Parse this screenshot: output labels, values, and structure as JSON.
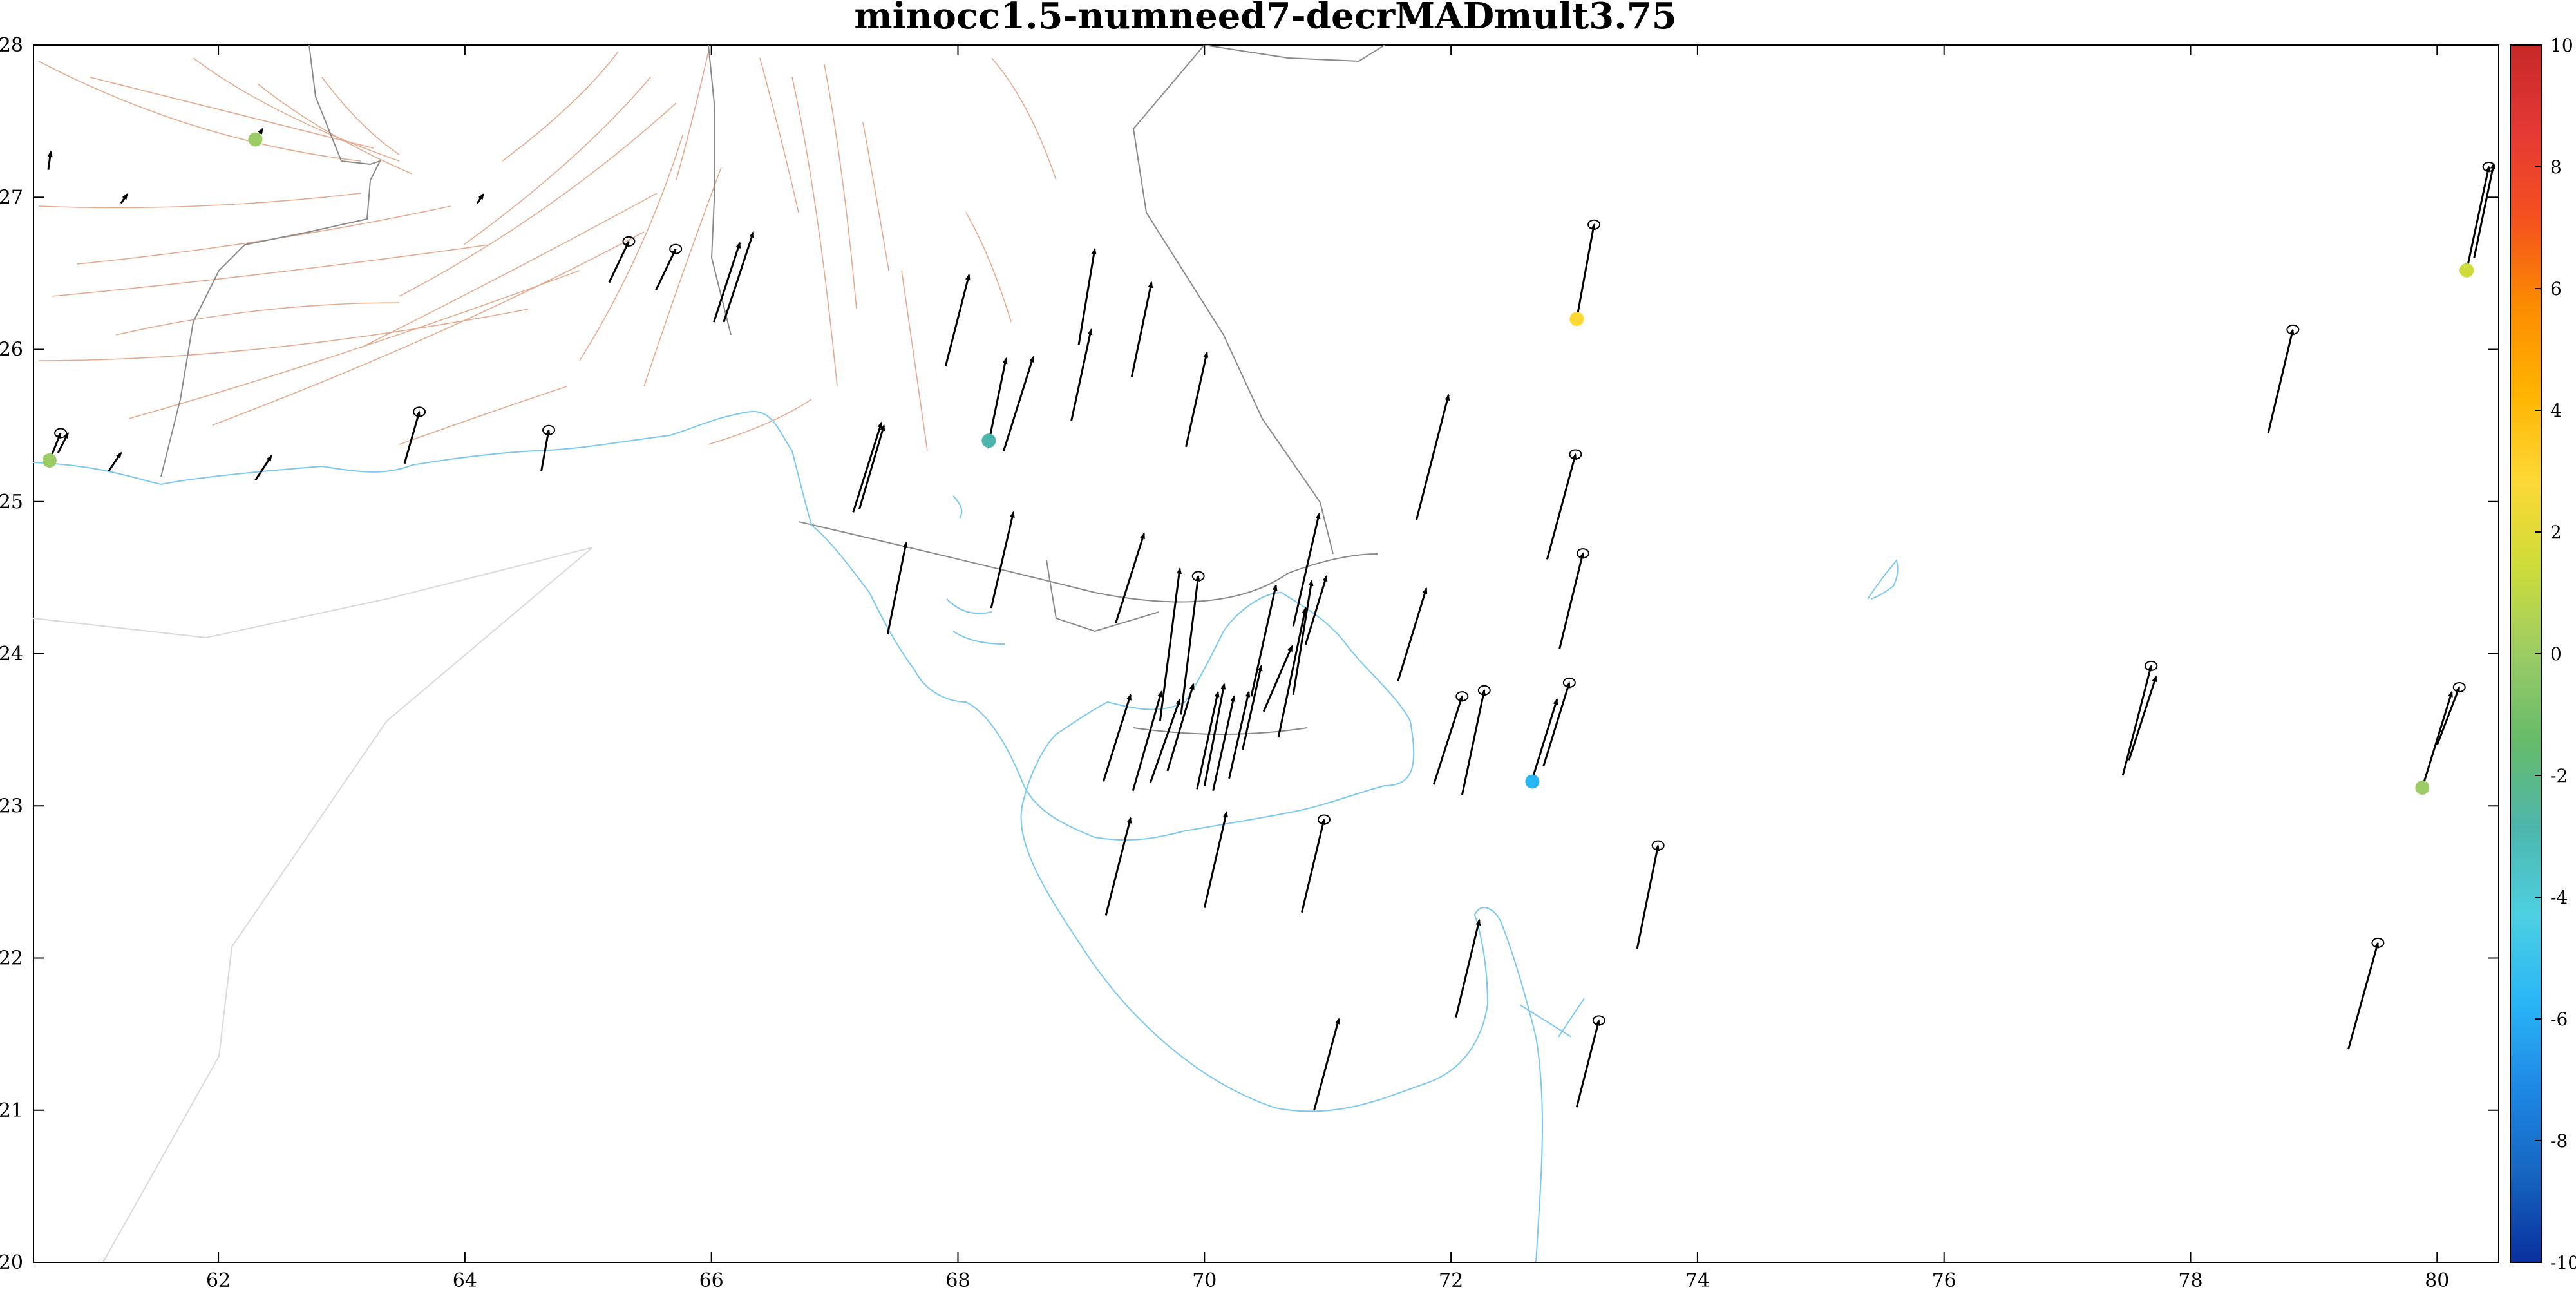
{
  "chart_data": {
    "type": "scatter",
    "title": "minocc1.5-numneed7-decrMADmult3.75",
    "xlabel": "",
    "ylabel": "",
    "xlim": [
      60.5,
      80.5
    ],
    "ylim": [
      20,
      28
    ],
    "xticks": [
      62,
      64,
      66,
      68,
      70,
      72,
      74,
      76,
      78,
      80
    ],
    "yticks": [
      20,
      21,
      22,
      23,
      24,
      25,
      26,
      27,
      28
    ],
    "grid": false,
    "colorbar": {
      "range": [
        -10,
        10
      ],
      "ticks": [
        -10,
        -8,
        -6,
        -4,
        -2,
        0,
        2,
        4,
        6,
        8,
        10
      ],
      "colors": [
        "#0a2f9e",
        "#1565c0",
        "#1e88e5",
        "#29b6f6",
        "#4dd0e1",
        "#4db6ac",
        "#66bb6a",
        "#9ccc65",
        "#cddc39",
        "#fdd835",
        "#ffb300",
        "#fb8c00",
        "#f4511e",
        "#e53935",
        "#c62828"
      ]
    },
    "colored_points": [
      {
        "x": 60.63,
        "y": 25.27,
        "value": 0.3
      },
      {
        "x": 62.3,
        "y": 27.38,
        "value": 0.2
      },
      {
        "x": 68.25,
        "y": 25.4,
        "value": -2.7
      },
      {
        "x": 73.02,
        "y": 26.2,
        "value": 2.2
      },
      {
        "x": 72.66,
        "y": 23.16,
        "value": -5.2
      },
      {
        "x": 80.24,
        "y": 26.52,
        "value": 0.9
      },
      {
        "x": 79.88,
        "y": 23.12,
        "value": 0.6
      }
    ],
    "vectors": [
      [
        60.63,
        25.27,
        60.72,
        25.45
      ],
      [
        60.7,
        25.32,
        60.78,
        25.45
      ],
      [
        60.62,
        27.18,
        60.64,
        27.3
      ],
      [
        61.21,
        26.96,
        61.26,
        27.02
      ],
      [
        61.11,
        25.2,
        61.21,
        25.32
      ],
      [
        62.3,
        25.14,
        62.43,
        25.3
      ],
      [
        62.3,
        27.38,
        62.36,
        27.45
      ],
      [
        64.1,
        26.96,
        64.15,
        27.02
      ],
      [
        63.51,
        25.25,
        63.63,
        25.59
      ],
      [
        64.62,
        25.2,
        64.68,
        25.47
      ],
      [
        65.17,
        26.44,
        65.33,
        26.71
      ],
      [
        65.55,
        26.39,
        65.71,
        26.66
      ],
      [
        66.02,
        26.18,
        66.23,
        26.7
      ],
      [
        66.1,
        26.18,
        66.34,
        26.77
      ],
      [
        67.15,
        24.93,
        67.38,
        25.52
      ],
      [
        67.2,
        24.95,
        67.4,
        25.5
      ],
      [
        67.43,
        24.13,
        67.58,
        24.73
      ],
      [
        67.9,
        25.89,
        68.09,
        26.49
      ],
      [
        68.24,
        25.35,
        68.39,
        25.94
      ],
      [
        68.37,
        25.33,
        68.61,
        25.95
      ],
      [
        68.27,
        24.3,
        68.45,
        24.93
      ],
      [
        68.98,
        26.03,
        69.11,
        26.66
      ],
      [
        68.92,
        25.53,
        69.08,
        26.13
      ],
      [
        69.41,
        25.82,
        69.57,
        26.44
      ],
      [
        69.28,
        24.2,
        69.51,
        24.79
      ],
      [
        69.85,
        25.36,
        70.02,
        25.98
      ],
      [
        69.64,
        23.56,
        69.8,
        24.56
      ],
      [
        69.81,
        23.6,
        69.95,
        24.51
      ],
      [
        69.18,
        23.16,
        69.4,
        23.73
      ],
      [
        69.42,
        23.1,
        69.65,
        23.75
      ],
      [
        69.56,
        23.15,
        69.8,
        23.7
      ],
      [
        69.7,
        23.23,
        69.91,
        23.8
      ],
      [
        69.94,
        23.11,
        70.11,
        23.75
      ],
      [
        70.0,
        23.13,
        70.16,
        23.8
      ],
      [
        70.07,
        23.1,
        70.24,
        23.72
      ],
      [
        70.2,
        23.18,
        70.36,
        23.75
      ],
      [
        70.31,
        23.37,
        70.46,
        23.92
      ],
      [
        70.38,
        23.72,
        70.58,
        24.45
      ],
      [
        70.48,
        23.62,
        70.71,
        24.05
      ],
      [
        70.6,
        23.45,
        70.82,
        24.3
      ],
      [
        70.72,
        23.73,
        70.87,
        24.48
      ],
      [
        70.82,
        24.06,
        70.99,
        24.51
      ],
      [
        70.72,
        24.18,
        70.93,
        24.92
      ],
      [
        71.57,
        23.82,
        71.8,
        24.43
      ],
      [
        71.72,
        24.88,
        71.98,
        25.7
      ],
      [
        71.86,
        23.14,
        72.09,
        23.72
      ],
      [
        72.09,
        23.07,
        72.27,
        23.76
      ],
      [
        72.65,
        23.15,
        72.86,
        23.7
      ],
      [
        72.75,
        23.26,
        72.96,
        23.81
      ],
      [
        72.78,
        24.62,
        73.01,
        25.31
      ],
      [
        72.88,
        24.03,
        73.07,
        24.66
      ],
      [
        73.02,
        26.2,
        73.16,
        26.82
      ],
      [
        69.2,
        22.28,
        69.4,
        22.92
      ],
      [
        70.0,
        22.33,
        70.18,
        22.96
      ],
      [
        70.79,
        22.3,
        70.97,
        22.91
      ],
      [
        73.51,
        22.06,
        73.68,
        22.74
      ],
      [
        72.04,
        21.61,
        72.23,
        22.25
      ],
      [
        70.89,
        21.0,
        71.09,
        21.6
      ],
      [
        73.02,
        21.02,
        73.2,
        21.59
      ],
      [
        77.45,
        23.2,
        77.68,
        23.92
      ],
      [
        77.5,
        23.3,
        77.72,
        23.85
      ],
      [
        78.63,
        25.45,
        78.83,
        26.13
      ],
      [
        79.28,
        21.4,
        79.52,
        22.1
      ],
      [
        79.88,
        23.12,
        80.12,
        23.75
      ],
      [
        80.0,
        23.4,
        80.18,
        23.78
      ],
      [
        80.24,
        26.52,
        80.42,
        27.2
      ],
      [
        80.3,
        26.6,
        80.46,
        27.22
      ]
    ],
    "error_ellipses": [
      [
        60.72,
        25.45
      ],
      [
        63.63,
        25.59
      ],
      [
        64.68,
        25.47
      ],
      [
        65.33,
        26.71
      ],
      [
        65.71,
        26.66
      ],
      [
        69.95,
        24.51
      ],
      [
        73.16,
        26.82
      ],
      [
        73.01,
        25.31
      ],
      [
        73.07,
        24.66
      ],
      [
        72.09,
        23.72
      ],
      [
        72.27,
        23.76
      ],
      [
        72.96,
        23.81
      ],
      [
        70.97,
        22.91
      ],
      [
        73.68,
        22.74
      ],
      [
        73.2,
        21.59
      ],
      [
        77.68,
        23.92
      ],
      [
        78.83,
        26.13
      ],
      [
        79.52,
        22.1
      ],
      [
        80.18,
        23.78
      ],
      [
        80.42,
        27.2
      ]
    ]
  },
  "palette": {
    "coast": "#7cc8ee",
    "border": "#8a8a8a",
    "faults": "#e4aa8e",
    "vector": "#000000",
    "axis": "#000000"
  }
}
